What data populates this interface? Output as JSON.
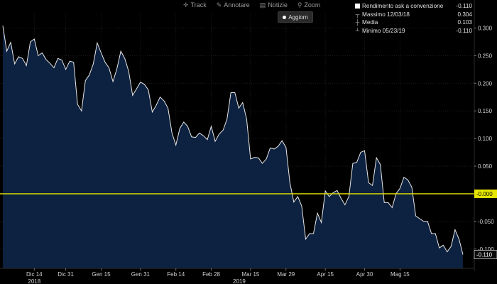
{
  "toolbar": {
    "track": "Track",
    "annotate": "Annotare",
    "news": "Notizie",
    "zoom": "Zoom",
    "refresh": "Aggiorn"
  },
  "legend": {
    "series": "Rendimento ask a convenzione",
    "series_value": "-0.110",
    "max_label": "Massimo 12/03/18",
    "max_value": "0.304",
    "mean_label": "Media",
    "mean_value": "0.103",
    "min_label": "Minimo 05/23/19",
    "min_value": "-0.110"
  },
  "colors": {
    "background": "#000000",
    "area_fill": "#0d2140",
    "line": "#e8e8e8",
    "reference_line": "#e6e600",
    "axis_text": "#d0d0d0"
  },
  "chart_data": {
    "type": "area",
    "title": "",
    "ylim": [
      -0.135,
      0.325
    ],
    "y_ticks": [
      0.3,
      0.25,
      0.2,
      0.15,
      0.1,
      0.05,
      0.0,
      -0.05,
      -0.1
    ],
    "y_tick_labels": [
      "0.300",
      "0.250",
      "0.200",
      "0.150",
      "0.100",
      "0.050",
      "0.000",
      "-0.050",
      "-0.100"
    ],
    "x_tick_labels": [
      "Dic 14",
      "Dic 31",
      "Gen 15",
      "Gen 31",
      "Feb 14",
      "Feb 28",
      "Mar 15",
      "Mar 29",
      "Apr 15",
      "Apr 30",
      "Mag 15"
    ],
    "year_labels": [
      "2018",
      "2019"
    ],
    "reference_line": {
      "value": 0.0,
      "label": "-0.000"
    },
    "last_value_label": "-0.110",
    "grid": true,
    "legend_position": "top-right",
    "series": [
      {
        "values": [
          0.304,
          0.258,
          0.274,
          0.235,
          0.248,
          0.245,
          0.232,
          0.275,
          0.28,
          0.25,
          0.255,
          0.243,
          0.236,
          0.228,
          0.245,
          0.242,
          0.225,
          0.24,
          0.238,
          0.162,
          0.15,
          0.205,
          0.215,
          0.235,
          0.273,
          0.255,
          0.238,
          0.228,
          0.203,
          0.226,
          0.258,
          0.245,
          0.222,
          0.178,
          0.19,
          0.202,
          0.198,
          0.188,
          0.148,
          0.16,
          0.175,
          0.168,
          0.155,
          0.11,
          0.088,
          0.118,
          0.13,
          0.122,
          0.103,
          0.102,
          0.11,
          0.105,
          0.098,
          0.122,
          0.095,
          0.108,
          0.115,
          0.135,
          0.183,
          0.183,
          0.155,
          0.165,
          0.135,
          0.063,
          0.066,
          0.065,
          0.055,
          0.063,
          0.083,
          0.081,
          0.086,
          0.096,
          0.084,
          0.02,
          -0.015,
          -0.005,
          -0.022,
          -0.082,
          -0.072,
          -0.072,
          -0.035,
          -0.052,
          0.005,
          -0.005,
          0.002,
          0.006,
          -0.008,
          -0.02,
          -0.005,
          0.055,
          0.057,
          0.075,
          0.078,
          0.02,
          0.015,
          0.065,
          0.053,
          -0.016,
          -0.016,
          -0.025,
          0.0,
          0.01,
          0.03,
          0.025,
          0.012,
          -0.04,
          -0.045,
          -0.05,
          -0.05,
          -0.072,
          -0.072,
          -0.098,
          -0.093,
          -0.105,
          -0.095,
          -0.065,
          -0.082,
          -0.11
        ]
      }
    ]
  }
}
